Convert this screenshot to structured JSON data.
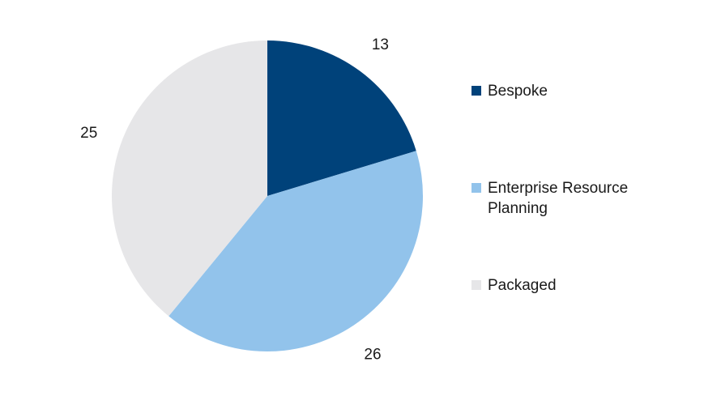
{
  "chart_data": {
    "type": "pie",
    "title": "",
    "legend_position": "right",
    "start_angle": "top",
    "direction": "clockwise",
    "slices": [
      {
        "label": "Bespoke",
        "value": 13,
        "color": "#00427a"
      },
      {
        "label": "Enterprise Resource Planning",
        "value": 26,
        "color": "#92c3eb"
      },
      {
        "label": "Packaged",
        "value": 25,
        "color": "#e6e6e8"
      }
    ]
  }
}
